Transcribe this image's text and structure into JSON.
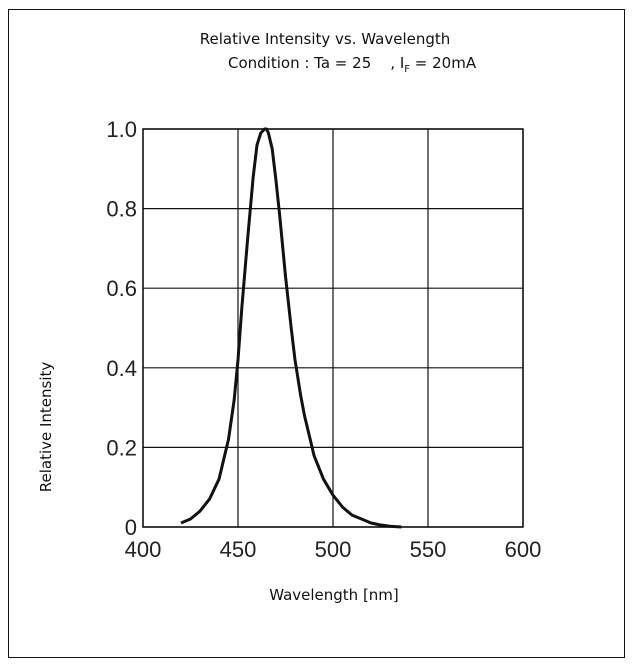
{
  "chart_data": {
    "type": "line",
    "title": "Relative Intensity vs. Wavelength",
    "condition": {
      "prefix": "Condition : Ta = 25    , I",
      "subscript": "F",
      "suffix": " = 20mA"
    },
    "xlabel": "Wavelength [nm]",
    "ylabel": "Relative Intensity",
    "xlim": [
      400,
      600
    ],
    "ylim": [
      0,
      1.0
    ],
    "x_ticks": [
      400,
      450,
      500,
      550,
      600
    ],
    "x_tick_labels": [
      "400",
      "450",
      "500",
      "550",
      "600"
    ],
    "y_ticks": [
      0,
      0.2,
      0.4,
      0.6,
      0.8,
      1.0
    ],
    "y_tick_labels": [
      "0",
      "0.2",
      "0.4",
      "0.6",
      "0.8",
      "1.0"
    ],
    "grid": true,
    "line_color": "#111111",
    "series": [
      {
        "x": [
          420,
          425,
          430,
          435,
          440,
          445,
          448,
          450,
          452,
          455,
          458,
          460,
          462,
          464,
          465,
          466,
          468,
          470,
          472,
          475,
          478,
          480,
          483,
          485,
          488,
          490,
          495,
          500,
          505,
          510,
          515,
          520,
          525,
          530,
          536
        ],
        "y": [
          0.01,
          0.02,
          0.04,
          0.07,
          0.12,
          0.22,
          0.32,
          0.42,
          0.55,
          0.72,
          0.88,
          0.96,
          0.99,
          1.0,
          1.0,
          0.99,
          0.95,
          0.87,
          0.78,
          0.63,
          0.5,
          0.42,
          0.33,
          0.28,
          0.22,
          0.18,
          0.12,
          0.08,
          0.05,
          0.03,
          0.02,
          0.01,
          0.005,
          0.002,
          0.0
        ]
      }
    ]
  }
}
